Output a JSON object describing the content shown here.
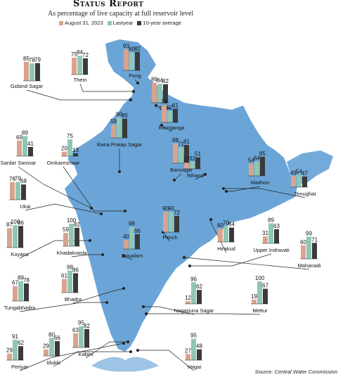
{
  "header": {
    "title": "Status Report",
    "subtitle": "As percentage of live capacity at full reservoir level",
    "source": "Source: Central Water Commission"
  },
  "colors": {
    "series_2023": "#d9a38e",
    "series_lastyear": "#8fc7b2",
    "series_10yr": "#3a3a3a",
    "map_fill": "#5b9bd3",
    "leader": "#222222"
  },
  "chart_data": {
    "type": "bar",
    "title": "Status Report",
    "subtitle": "As percentage of live capacity at full reservoir level",
    "legend": [
      "August 31, 2023",
      "Lastyear",
      "10-year average"
    ],
    "legend_placement": "top",
    "ylim": [
      0,
      100
    ],
    "reservoirs": [
      {
        "name": "Gobind Sagar",
        "values": [
          85,
          78,
          79
        ]
      },
      {
        "name": "Thein",
        "values": [
          75,
          84,
          72
        ]
      },
      {
        "name": "Pong",
        "values": [
          93,
          80,
          82
        ]
      },
      {
        "name": "Tehri",
        "values": [
          89,
          84,
          82
        ]
      },
      {
        "name": "Ramganga",
        "values": [
          76,
          52,
          61
        ]
      },
      {
        "name": "Rana Pratap Sagar",
        "values": [
          59,
          90,
          85
        ]
      },
      {
        "name": "Sardar Sarovar",
        "values": [
          69,
          89,
          41
        ]
      },
      {
        "name": "Omkareshwar",
        "values": [
          20,
          75,
          13
        ]
      },
      {
        "name": "Bansagar",
        "values": [
          88,
          71,
          81
        ]
      },
      {
        "name": "Rihand",
        "values": [
          27,
          32,
          51
        ]
      },
      {
        "name": "Maithon",
        "values": [
          54,
          64,
          85
        ]
      },
      {
        "name": "Tenughat",
        "values": [
          49,
          54,
          47
        ]
      },
      {
        "name": "Ukai",
        "values": [
          78,
          79,
          68
        ]
      },
      {
        "name": "Pench",
        "values": [
          90,
          90,
          72
        ]
      },
      {
        "name": "Koyana",
        "values": [
          87,
          100,
          96
        ]
      },
      {
        "name": "Khadakvasla",
        "values": [
          59,
          100,
          82
        ]
      },
      {
        "name": "Srisailam",
        "values": [
          40,
          98,
          66
        ]
      },
      {
        "name": "Hirakud",
        "values": [
          60,
          70,
          64
        ]
      },
      {
        "name": "Upper Indravati",
        "values": [
          31,
          89,
          63
        ]
      },
      {
        "name": "Mahanadi",
        "values": [
          60,
          99,
          71
        ]
      },
      {
        "name": "Tungabhadra",
        "values": [
          67,
          89,
          78
        ]
      },
      {
        "name": "Bhadra",
        "values": [
          61,
          98,
          86
        ]
      },
      {
        "name": "Nagarjuna Sagar",
        "values": [
          12,
          96,
          62
        ]
      },
      {
        "name": "Mettur",
        "values": [
          19,
          100,
          67
        ]
      },
      {
        "name": "Kabini",
        "values": [
          63,
          95,
          82
        ]
      },
      {
        "name": "Periyar",
        "values": [
          29,
          91,
          62
        ]
      },
      {
        "name": "Idukki",
        "values": [
          29,
          80,
          66
        ]
      },
      {
        "name": "Vaigai",
        "values": [
          27,
          95,
          48
        ]
      }
    ]
  }
}
